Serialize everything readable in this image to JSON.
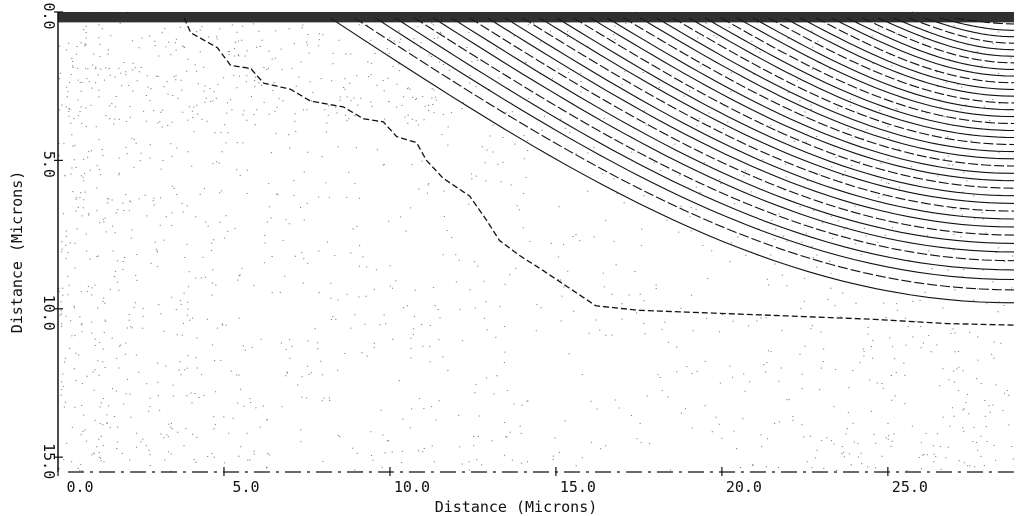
{
  "chart_data": {
    "type": "contour",
    "title": "",
    "xlabel": "Distance (Microns)",
    "ylabel": "Distance (Microns)",
    "xlim": [
      0,
      28.8
    ],
    "ylim": [
      0,
      15.5
    ],
    "y_inverted": true,
    "x_ticks": [
      "0.0",
      "5.0",
      "10.0",
      "15.0",
      "20.0",
      "25.0"
    ],
    "x_tick_values": [
      0,
      5,
      10,
      15,
      20,
      25
    ],
    "y_ticks": [
      "0.0",
      "5.0",
      "10.0",
      "15.0"
    ],
    "y_tick_values": [
      0,
      5,
      10,
      15
    ],
    "grid": false,
    "colors": {
      "lines": "#111111",
      "dots": "#555555",
      "background": "#ffffff"
    },
    "contour_family": {
      "count": 38,
      "depth_start": 9.8,
      "depth_end": 0.4,
      "x_left_start": 8.2,
      "x_left_end": 27.0,
      "x_right_limit": 28.8
    },
    "boundary_dashed": [
      [
        3.8,
        0.2
      ],
      [
        4.0,
        0.7
      ],
      [
        4.8,
        1.2
      ],
      [
        5.2,
        1.8
      ],
      [
        5.8,
        1.9
      ],
      [
        6.2,
        2.4
      ],
      [
        7.0,
        2.6
      ],
      [
        7.6,
        3.0
      ],
      [
        8.6,
        3.2
      ],
      [
        9.2,
        3.6
      ],
      [
        9.8,
        3.7
      ],
      [
        10.2,
        4.2
      ],
      [
        10.8,
        4.4
      ],
      [
        11.1,
        5.0
      ],
      [
        11.6,
        5.6
      ],
      [
        12.4,
        6.2
      ],
      [
        12.9,
        7.0
      ],
      [
        13.3,
        7.7
      ],
      [
        13.9,
        8.2
      ],
      [
        14.6,
        8.7
      ],
      [
        15.4,
        9.3
      ],
      [
        16.2,
        9.9
      ],
      [
        17.5,
        10.05
      ],
      [
        21.0,
        10.2
      ],
      [
        24.5,
        10.35
      ],
      [
        26.8,
        10.5
      ],
      [
        28.8,
        10.55
      ]
    ],
    "bottom_dashdot": {
      "y": 15.5,
      "x_start": 0.3,
      "x_end": 28.8
    },
    "top_band": {
      "y_top": 0.0,
      "y_bottom": 0.35
    }
  }
}
